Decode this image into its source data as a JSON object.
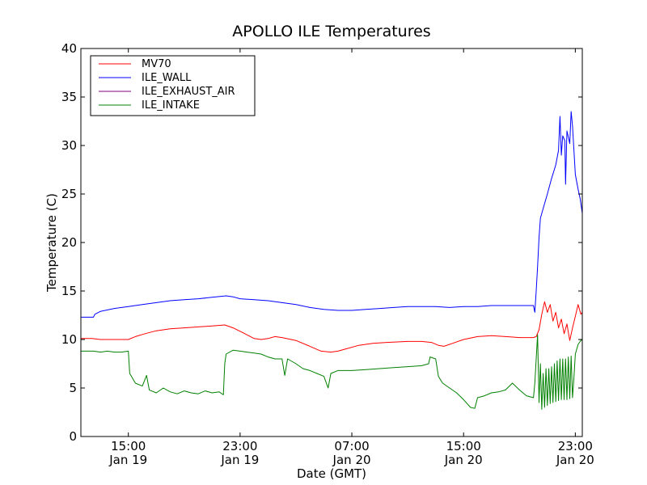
{
  "chart_data": {
    "type": "line",
    "title": "APOLLO ILE Temperatures",
    "xlabel": "Date (GMT)",
    "ylabel": "Temperature (C)",
    "x_unit": "hours since 2014-01-19 00:00 GMT",
    "xlim": [
      11.6,
      47.5
    ],
    "ylim": [
      0,
      40
    ],
    "yticks": [
      0,
      5,
      10,
      15,
      20,
      25,
      30,
      35,
      40
    ],
    "xticks": [
      {
        "x": 15,
        "line1": "15:00",
        "line2": "Jan 19"
      },
      {
        "x": 23,
        "line1": "23:00",
        "line2": "Jan 19"
      },
      {
        "x": 31,
        "line1": "07:00",
        "line2": "Jan 20"
      },
      {
        "x": 39,
        "line1": "15:00",
        "line2": "Jan 20"
      },
      {
        "x": 47,
        "line1": "23:00",
        "line2": "Jan 20"
      }
    ],
    "grid": false,
    "legend_position": "upper-left",
    "series": [
      {
        "name": "MV70",
        "color": "#ff0000",
        "points": [
          [
            11.6,
            10.1
          ],
          [
            12.4,
            10.1
          ],
          [
            13.0,
            10.0
          ],
          [
            14.0,
            10.0
          ],
          [
            15.0,
            10.0
          ],
          [
            15.5,
            10.3
          ],
          [
            16.2,
            10.6
          ],
          [
            17.0,
            10.9
          ],
          [
            18.0,
            11.1
          ],
          [
            19.0,
            11.2
          ],
          [
            20.0,
            11.3
          ],
          [
            21.0,
            11.4
          ],
          [
            21.9,
            11.5
          ],
          [
            22.5,
            11.2
          ],
          [
            23.2,
            10.7
          ],
          [
            24.0,
            10.1
          ],
          [
            24.5,
            10.0
          ],
          [
            25.0,
            10.1
          ],
          [
            25.5,
            10.3
          ],
          [
            26.0,
            10.2
          ],
          [
            27.0,
            9.9
          ],
          [
            28.0,
            9.3
          ],
          [
            28.8,
            8.8
          ],
          [
            29.5,
            8.7
          ],
          [
            30.0,
            8.8
          ],
          [
            30.5,
            9.0
          ],
          [
            31.5,
            9.4
          ],
          [
            32.5,
            9.6
          ],
          [
            33.5,
            9.7
          ],
          [
            35.0,
            9.8
          ],
          [
            36.0,
            9.8
          ],
          [
            36.7,
            9.7
          ],
          [
            37.2,
            9.4
          ],
          [
            37.6,
            9.3
          ],
          [
            38.2,
            9.6
          ],
          [
            39.0,
            10.0
          ],
          [
            40.0,
            10.3
          ],
          [
            41.0,
            10.4
          ],
          [
            42.0,
            10.3
          ],
          [
            43.0,
            10.2
          ],
          [
            44.0,
            10.2
          ],
          [
            44.2,
            10.3
          ],
          [
            44.4,
            11.0
          ],
          [
            44.6,
            12.6
          ],
          [
            44.8,
            13.9
          ],
          [
            45.0,
            12.8
          ],
          [
            45.2,
            13.6
          ],
          [
            45.4,
            11.9
          ],
          [
            45.6,
            12.8
          ],
          [
            45.8,
            11.2
          ],
          [
            46.0,
            12.1
          ],
          [
            46.2,
            10.6
          ],
          [
            46.4,
            11.6
          ],
          [
            46.6,
            9.9
          ],
          [
            46.8,
            11.2
          ],
          [
            47.0,
            12.4
          ],
          [
            47.2,
            13.6
          ],
          [
            47.4,
            12.6
          ],
          [
            47.5,
            12.8
          ]
        ]
      },
      {
        "name": "ILE_WALL",
        "color": "#0000ff",
        "points": [
          [
            11.6,
            12.3
          ],
          [
            12.5,
            12.3
          ],
          [
            12.6,
            12.6
          ],
          [
            13.0,
            12.9
          ],
          [
            14.0,
            13.2
          ],
          [
            15.0,
            13.4
          ],
          [
            16.0,
            13.6
          ],
          [
            17.0,
            13.8
          ],
          [
            18.0,
            14.0
          ],
          [
            19.0,
            14.1
          ],
          [
            20.0,
            14.2
          ],
          [
            21.0,
            14.35
          ],
          [
            22.0,
            14.5
          ],
          [
            22.5,
            14.4
          ],
          [
            23.0,
            14.2
          ],
          [
            24.0,
            14.1
          ],
          [
            25.0,
            14.0
          ],
          [
            26.0,
            13.8
          ],
          [
            27.0,
            13.6
          ],
          [
            28.0,
            13.3
          ],
          [
            29.0,
            13.1
          ],
          [
            30.0,
            13.0
          ],
          [
            31.0,
            13.0
          ],
          [
            32.0,
            13.1
          ],
          [
            33.0,
            13.2
          ],
          [
            34.0,
            13.3
          ],
          [
            35.0,
            13.4
          ],
          [
            36.0,
            13.4
          ],
          [
            37.0,
            13.4
          ],
          [
            38.0,
            13.3
          ],
          [
            39.0,
            13.4
          ],
          [
            40.0,
            13.4
          ],
          [
            41.0,
            13.5
          ],
          [
            42.0,
            13.5
          ],
          [
            43.0,
            13.5
          ],
          [
            44.0,
            13.5
          ],
          [
            44.1,
            12.8
          ],
          [
            44.2,
            15.0
          ],
          [
            44.3,
            17.5
          ],
          [
            44.4,
            20.5
          ],
          [
            44.5,
            22.5
          ],
          [
            44.7,
            23.5
          ],
          [
            45.0,
            25.0
          ],
          [
            45.3,
            26.6
          ],
          [
            45.6,
            28.0
          ],
          [
            45.8,
            29.5
          ],
          [
            45.9,
            33.0
          ],
          [
            46.0,
            29.0
          ],
          [
            46.1,
            31.0
          ],
          [
            46.25,
            30.5
          ],
          [
            46.3,
            26.0
          ],
          [
            46.4,
            31.5
          ],
          [
            46.6,
            30.2
          ],
          [
            46.7,
            33.5
          ],
          [
            46.8,
            32.0
          ],
          [
            47.0,
            27.0
          ],
          [
            47.2,
            25.5
          ],
          [
            47.35,
            24.5
          ],
          [
            47.5,
            23.0
          ]
        ]
      },
      {
        "name": "ILE_EXHAUST_AIR",
        "color": "#800080",
        "points": []
      },
      {
        "name": "ILE_INTAKE",
        "color": "#008000",
        "points": [
          [
            11.6,
            8.8
          ],
          [
            12.5,
            8.8
          ],
          [
            13.0,
            8.7
          ],
          [
            13.5,
            8.8
          ],
          [
            14.0,
            8.7
          ],
          [
            14.5,
            8.7
          ],
          [
            15.0,
            8.8
          ],
          [
            15.1,
            6.5
          ],
          [
            15.5,
            5.5
          ],
          [
            16.0,
            5.2
          ],
          [
            16.3,
            6.3
          ],
          [
            16.5,
            4.8
          ],
          [
            17.0,
            4.5
          ],
          [
            17.5,
            5.0
          ],
          [
            18.0,
            4.6
          ],
          [
            18.5,
            4.4
          ],
          [
            19.0,
            4.7
          ],
          [
            19.5,
            4.5
          ],
          [
            20.0,
            4.4
          ],
          [
            20.5,
            4.7
          ],
          [
            21.0,
            4.5
          ],
          [
            21.5,
            4.6
          ],
          [
            21.8,
            4.3
          ],
          [
            21.9,
            7.5
          ],
          [
            22.0,
            8.5
          ],
          [
            22.5,
            8.9
          ],
          [
            23.0,
            8.8
          ],
          [
            23.5,
            8.7
          ],
          [
            24.0,
            8.6
          ],
          [
            24.5,
            8.5
          ],
          [
            25.0,
            8.2
          ],
          [
            25.5,
            8.0
          ],
          [
            26.0,
            8.0
          ],
          [
            26.2,
            6.3
          ],
          [
            26.4,
            8.0
          ],
          [
            27.0,
            7.5
          ],
          [
            27.5,
            7.0
          ],
          [
            28.0,
            6.8
          ],
          [
            28.5,
            6.5
          ],
          [
            29.0,
            6.2
          ],
          [
            29.3,
            5.0
          ],
          [
            29.5,
            6.5
          ],
          [
            30.0,
            6.8
          ],
          [
            31.0,
            6.8
          ],
          [
            32.0,
            6.9
          ],
          [
            33.0,
            7.0
          ],
          [
            34.0,
            7.1
          ],
          [
            35.0,
            7.2
          ],
          [
            36.0,
            7.3
          ],
          [
            36.5,
            7.5
          ],
          [
            36.6,
            8.2
          ],
          [
            37.0,
            8.0
          ],
          [
            37.2,
            6.2
          ],
          [
            37.5,
            5.5
          ],
          [
            38.0,
            5.0
          ],
          [
            38.5,
            4.5
          ],
          [
            39.0,
            3.8
          ],
          [
            39.5,
            3.0
          ],
          [
            39.8,
            2.9
          ],
          [
            40.0,
            4.0
          ],
          [
            40.5,
            4.2
          ],
          [
            41.0,
            4.5
          ],
          [
            41.5,
            4.6
          ],
          [
            42.0,
            4.8
          ],
          [
            42.5,
            5.5
          ],
          [
            43.0,
            4.8
          ],
          [
            43.5,
            4.2
          ],
          [
            44.0,
            4.0
          ],
          [
            44.1,
            5.5
          ],
          [
            44.2,
            8.0
          ],
          [
            44.3,
            10.5
          ],
          [
            44.4,
            3.5
          ],
          [
            44.5,
            7.5
          ],
          [
            44.6,
            2.8
          ],
          [
            44.7,
            6.5
          ],
          [
            44.8,
            3.0
          ],
          [
            44.9,
            7.0
          ],
          [
            45.0,
            3.2
          ],
          [
            45.1,
            7.0
          ],
          [
            45.2,
            3.4
          ],
          [
            45.3,
            7.2
          ],
          [
            45.4,
            3.5
          ],
          [
            45.5,
            7.5
          ],
          [
            45.6,
            3.6
          ],
          [
            45.7,
            7.8
          ],
          [
            45.8,
            3.7
          ],
          [
            45.9,
            8.0
          ],
          [
            46.0,
            3.8
          ],
          [
            46.1,
            8.0
          ],
          [
            46.2,
            3.8
          ],
          [
            46.3,
            8.0
          ],
          [
            46.4,
            3.8
          ],
          [
            46.5,
            8.2
          ],
          [
            46.6,
            3.9
          ],
          [
            46.7,
            8.3
          ],
          [
            46.8,
            4.0
          ],
          [
            46.9,
            6.0
          ],
          [
            47.0,
            8.5
          ],
          [
            47.2,
            9.5
          ],
          [
            47.4,
            9.9
          ],
          [
            47.5,
            10.0
          ]
        ]
      }
    ]
  }
}
